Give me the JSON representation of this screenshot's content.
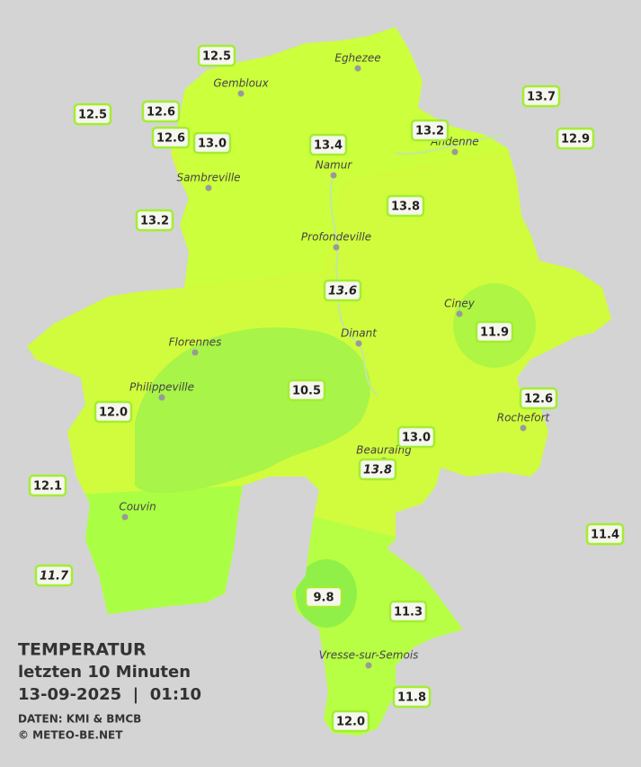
{
  "map": {
    "stations": [
      {
        "label": "12.5"
      },
      {
        "label": "12.5"
      },
      {
        "label": "12.6"
      },
      {
        "label": "12.6"
      },
      {
        "label": "13.0"
      },
      {
        "label": "13.4"
      },
      {
        "label": "13.2"
      },
      {
        "label": "13.7"
      },
      {
        "label": "12.9"
      },
      {
        "label": "13.2"
      },
      {
        "label": "13.8"
      },
      {
        "label": "13.6",
        "italic": true
      },
      {
        "label": "11.9"
      },
      {
        "label": "10.5"
      },
      {
        "label": "12.6"
      },
      {
        "label": "12.0"
      },
      {
        "label": "13.0"
      },
      {
        "label": "12.1"
      },
      {
        "label": "11.4"
      },
      {
        "label": "11.7",
        "italic": true
      },
      {
        "label": "9.8"
      },
      {
        "label": "11.3"
      },
      {
        "label": "11.8"
      },
      {
        "label": "12.0"
      }
    ],
    "towns": [
      "Eghezee",
      "Gembloux",
      "Andenne",
      "Namur",
      "Sambreville",
      "Profondeville",
      "Ciney",
      "Dinant",
      "Florennes",
      "Philippeville",
      "Rochefort",
      "Beauraing",
      "Couvin",
      "Vresse-sur-Semois"
    ],
    "beauraing_station": {
      "label": "13.8",
      "italic": true
    },
    "caption": {
      "title": "TEMPERATUR",
      "subtitle": "letzten 10 Minuten",
      "datetime": "13-09-2025  |  01:10",
      "source": "DATEN: KMI & BMCB",
      "copyright": "© METEO-BE.NET"
    }
  }
}
